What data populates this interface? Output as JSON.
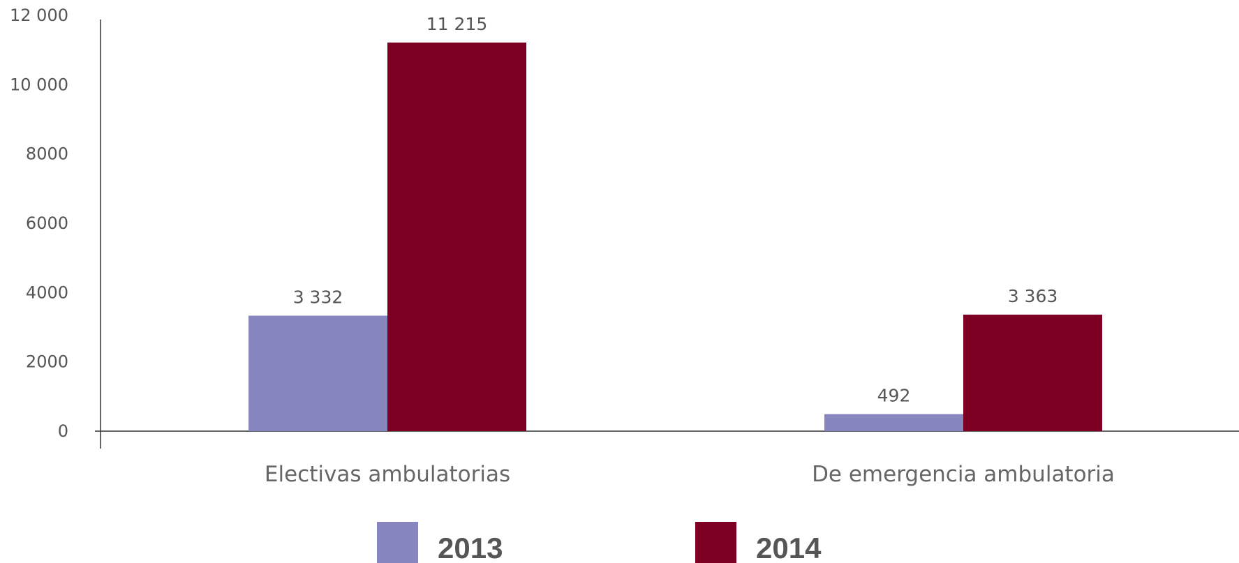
{
  "chart_data": {
    "type": "bar",
    "categories": [
      "Electivas ambulatorias",
      "De emergencia ambulatoria"
    ],
    "series": [
      {
        "name": "2013",
        "values": [
          3332,
          492
        ],
        "labels": [
          "3 332",
          "492"
        ],
        "color": "#8886be"
      },
      {
        "name": "2014",
        "values": [
          11215,
          3363
        ],
        "labels": [
          "11 215",
          "3 363"
        ],
        "color": "#7d0024"
      }
    ],
    "yticks": [
      {
        "value": 0,
        "label": "0"
      },
      {
        "value": 2000,
        "label": "2000"
      },
      {
        "value": 4000,
        "label": "4000"
      },
      {
        "value": 6000,
        "label": "6000"
      },
      {
        "value": 8000,
        "label": "8000"
      },
      {
        "value": 10000,
        "label": "10 000"
      },
      {
        "value": 12000,
        "label": "12 000"
      }
    ],
    "ylim": [
      0,
      12000
    ],
    "title": "",
    "xlabel": "",
    "ylabel": "",
    "grid": false,
    "legend_position": "bottom"
  }
}
